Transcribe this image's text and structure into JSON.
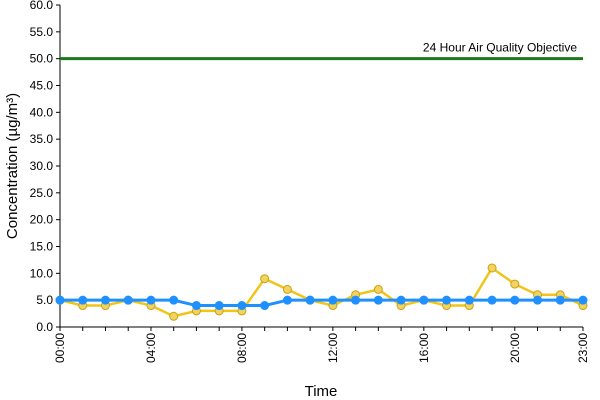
{
  "chart_data": {
    "type": "line",
    "xlabel": "Time",
    "ylabel": "Concentration (µg/m³)",
    "ylim": [
      0,
      60
    ],
    "y_ticks": [
      "0.0",
      "5.0",
      "10.0",
      "15.0",
      "20.0",
      "25.0",
      "30.0",
      "35.0",
      "40.0",
      "45.0",
      "50.0",
      "55.0",
      "60.0"
    ],
    "x_ticks": [
      "00:00",
      "04:00",
      "08:00",
      "12:00",
      "16:00",
      "20:00",
      "23:00"
    ],
    "x_tick_hours": [
      0,
      4,
      8,
      12,
      16,
      20,
      23
    ],
    "x_hours": [
      0,
      1,
      2,
      3,
      4,
      5,
      6,
      7,
      8,
      9,
      10,
      11,
      12,
      13,
      14,
      15,
      16,
      17,
      18,
      19,
      20,
      21,
      22,
      23
    ],
    "grid": false,
    "series": [
      {
        "color": "#f0c419",
        "marker_fill": "#f2d35c",
        "values": [
          5,
          4,
          4,
          5,
          4,
          2,
          3,
          3,
          3,
          9,
          7,
          5,
          4,
          6,
          7,
          4,
          5,
          4,
          4,
          11,
          8,
          6,
          6,
          4
        ]
      },
      {
        "color": "#1e90ff",
        "marker_fill": "#1e90ff",
        "values": [
          5,
          5,
          5,
          5,
          5,
          5,
          4,
          4,
          4,
          4,
          5,
          5,
          5,
          5,
          5,
          5,
          5,
          5,
          5,
          5,
          5,
          5,
          5,
          5
        ]
      }
    ],
    "reference_line": {
      "label": "24 Hour Air Quality Objective",
      "value": 50,
      "color": "#1a7a1a"
    }
  }
}
